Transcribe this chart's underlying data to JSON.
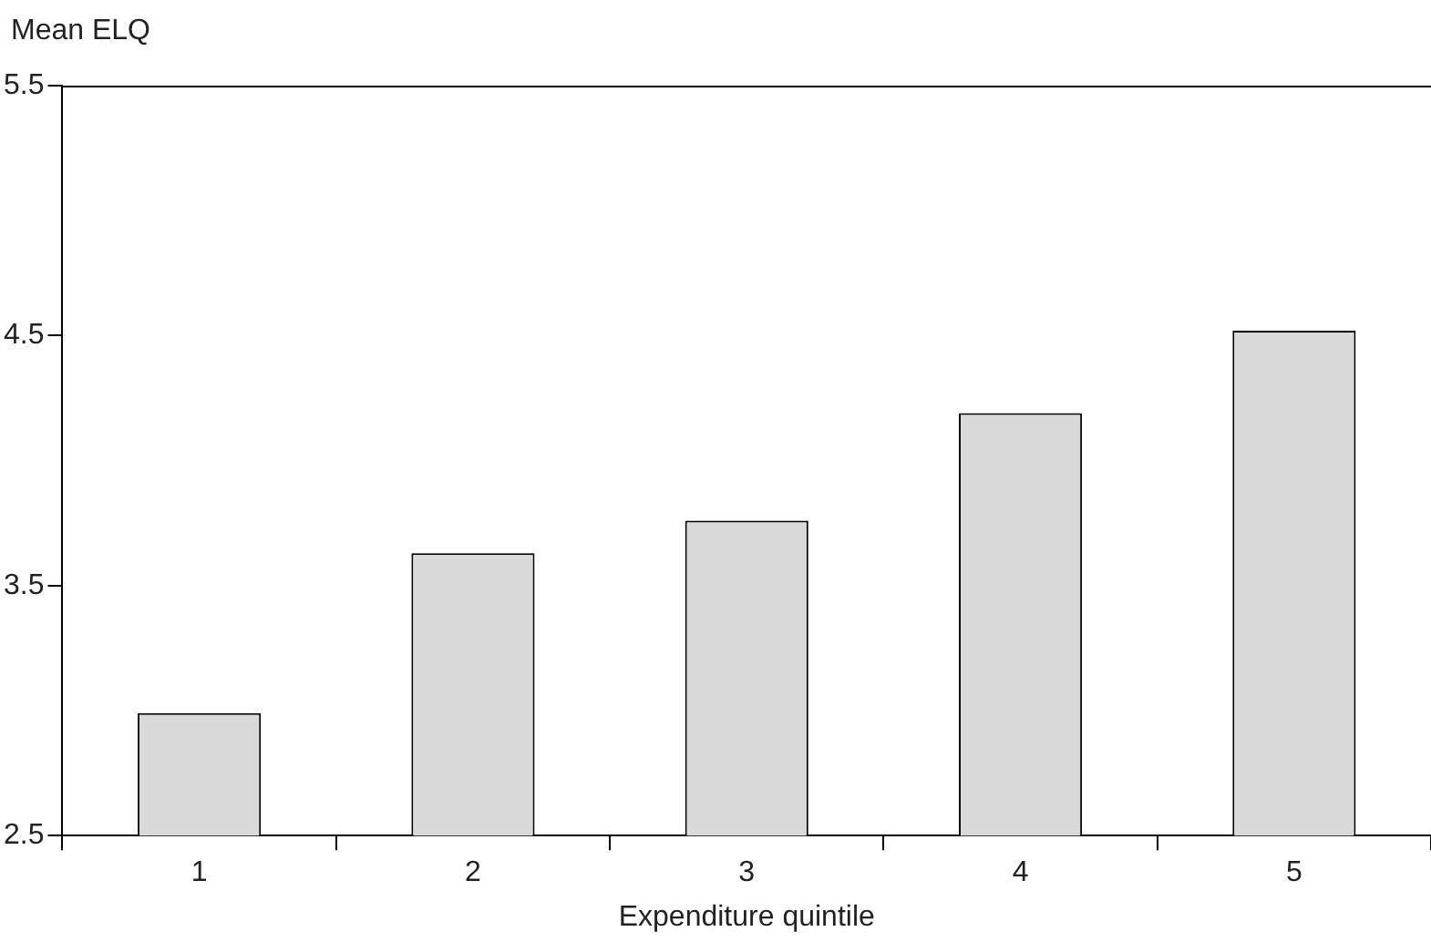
{
  "chart_data": {
    "type": "bar",
    "xlabel": "Expenditure quintile",
    "ylabel": "Mean ELQ",
    "categories": [
      "1",
      "2",
      "3",
      "4",
      "5"
    ],
    "values": [
      2.99,
      3.63,
      3.76,
      4.19,
      4.52
    ],
    "color": "#d9d9d9",
    "ylim": [
      2.5,
      5.5
    ],
    "yticks": [
      2.5,
      3.5,
      4.5,
      5.5
    ],
    "grid": false
  }
}
